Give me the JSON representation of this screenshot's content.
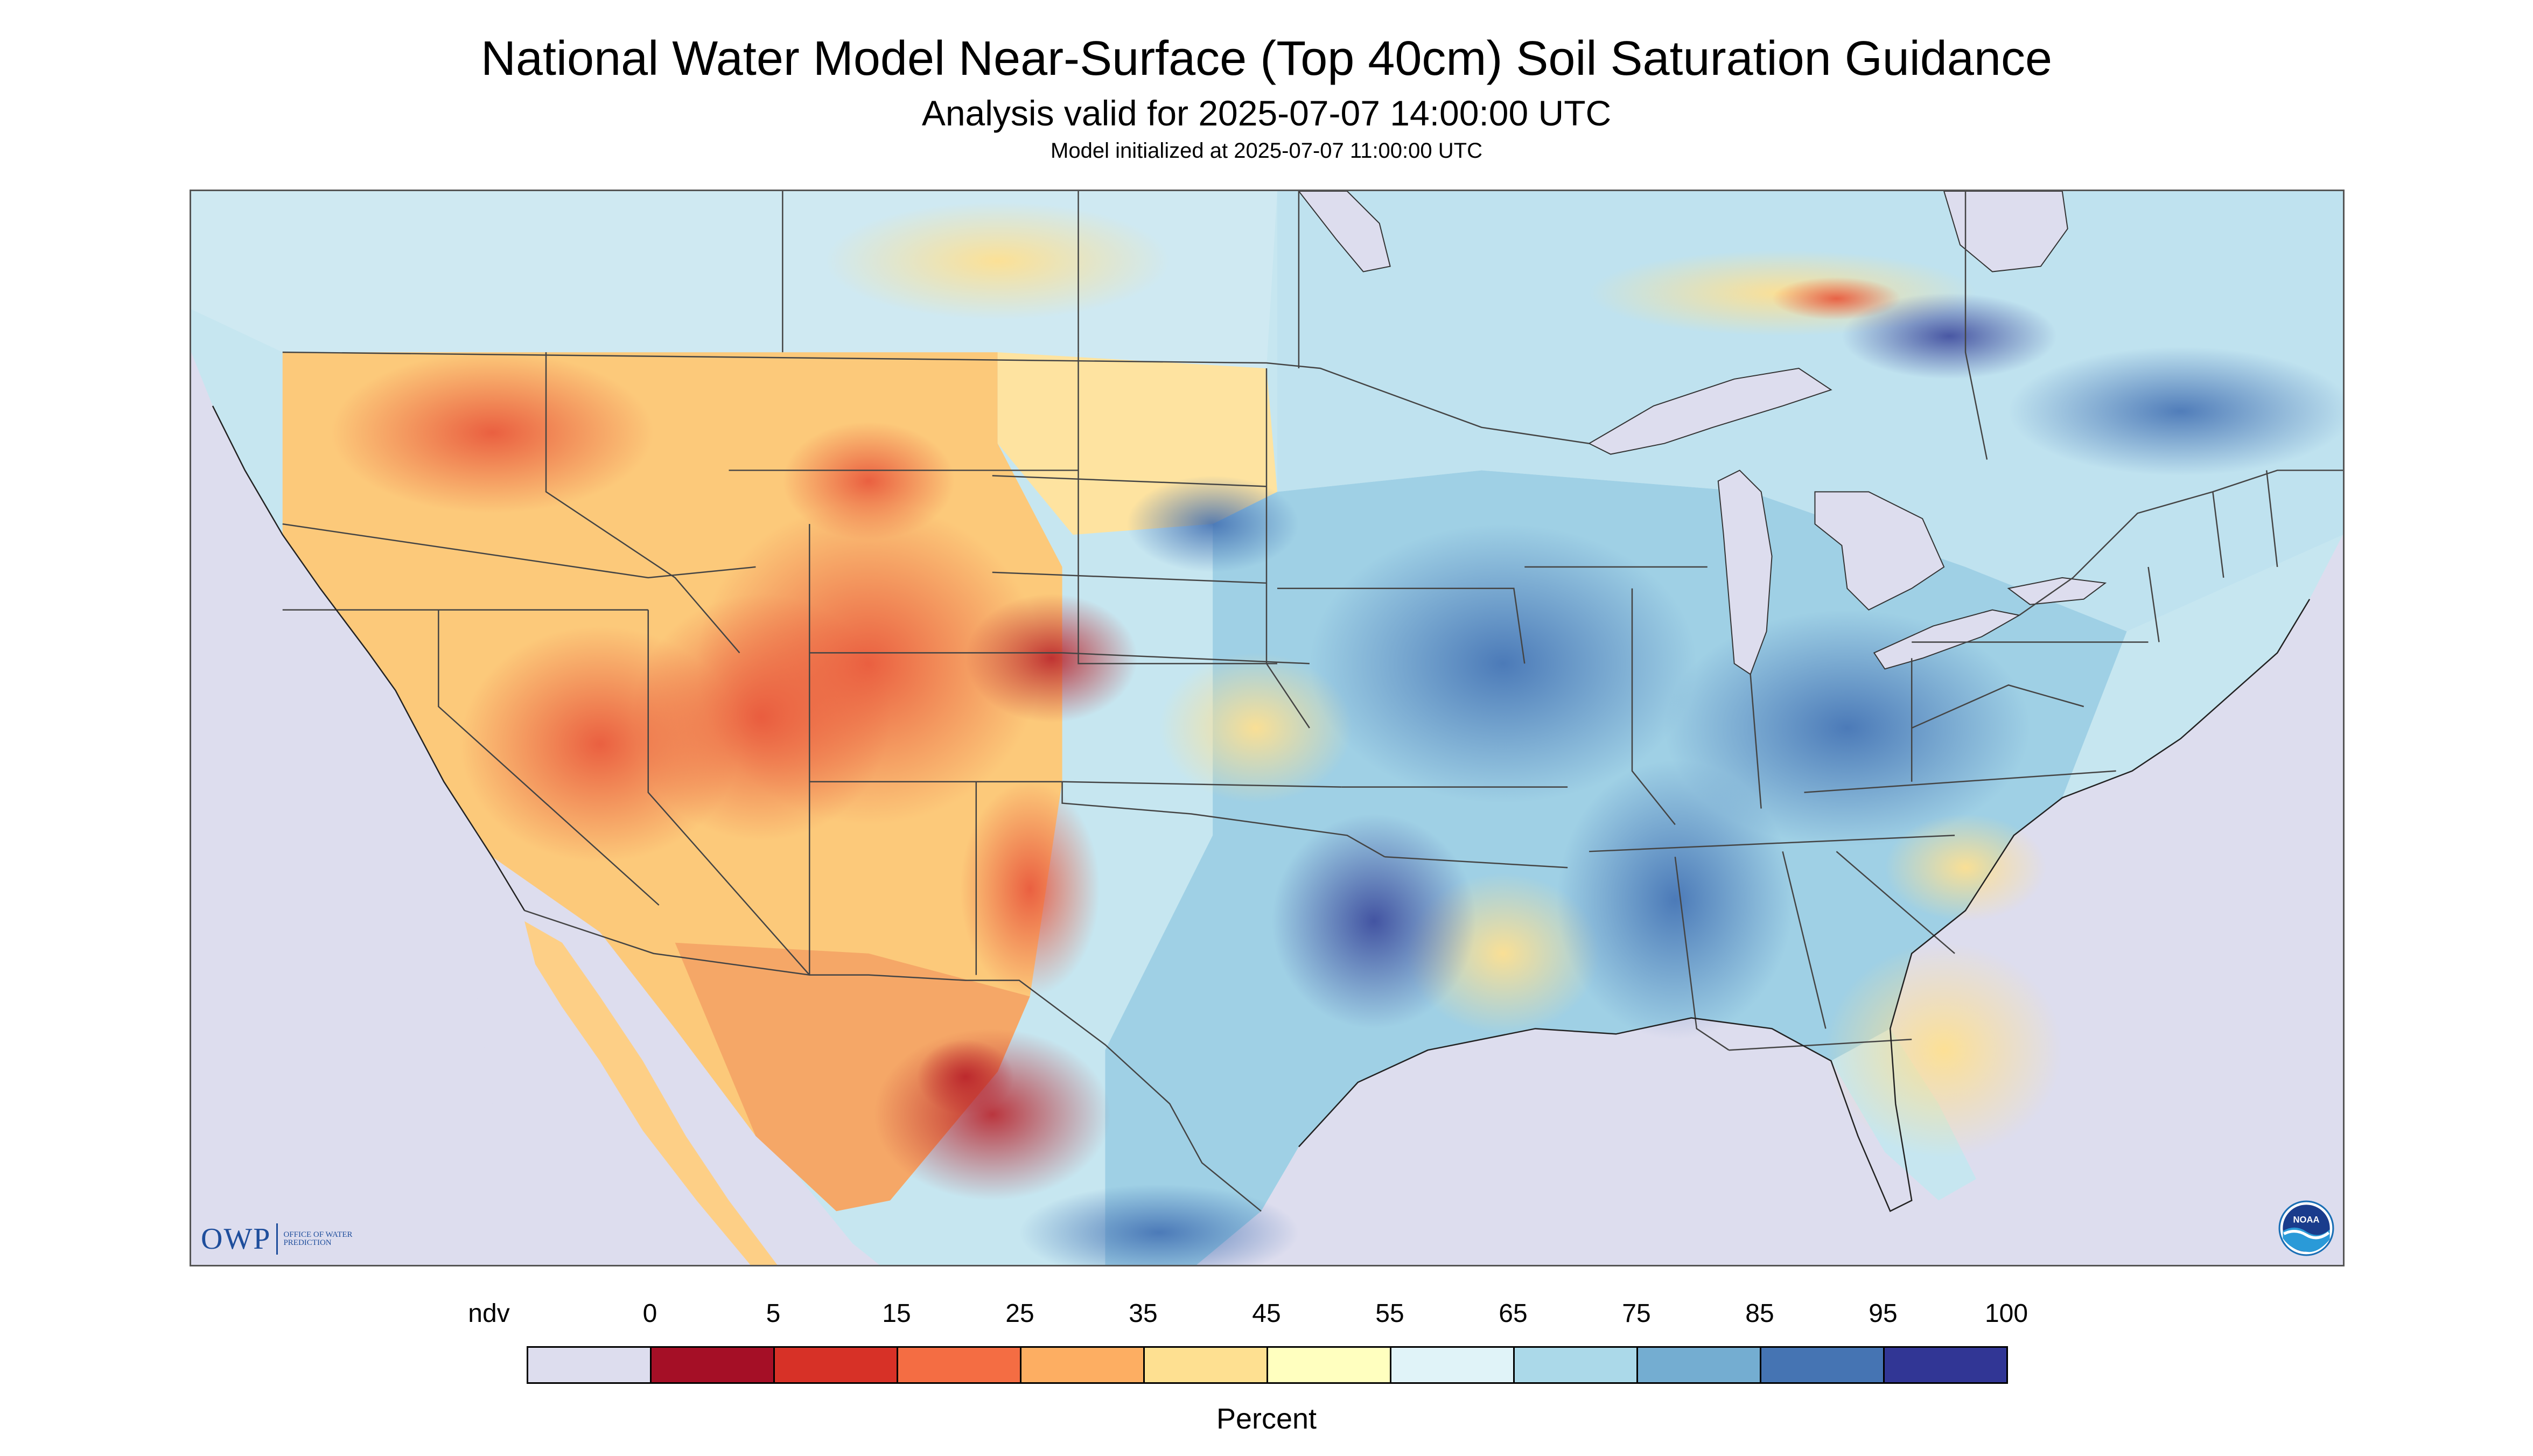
{
  "header": {
    "title": "National Water Model Near-Surface (Top 40cm) Soil Saturation Guidance",
    "subtitle": "Analysis valid for 2025-07-07 14:00:00 UTC",
    "initialized": "Model initialized at 2025-07-07 11:00:00 UTC"
  },
  "logos": {
    "owp_mark": "OWP",
    "owp_text": "Office of Water Prediction",
    "noaa_text": "NOAA"
  },
  "legend": {
    "unit": "Percent",
    "labels": [
      "ndv",
      "0",
      "5",
      "15",
      "25",
      "35",
      "45",
      "55",
      "65",
      "75",
      "85",
      "95",
      "100"
    ],
    "colors": [
      "#ddddee",
      "#a50f26",
      "#d73127",
      "#f46d43",
      "#fdae62",
      "#fee091",
      "#ffffbf",
      "#e0f3f8",
      "#abd9e9",
      "#74add1",
      "#4574b3",
      "#313695"
    ]
  },
  "map": {
    "nodata_color": "#ddddee",
    "dry_color": "#f46d43",
    "moist_color": "#abd9e9",
    "wet_color": "#4574b3",
    "very_wet_color": "#313695"
  }
}
